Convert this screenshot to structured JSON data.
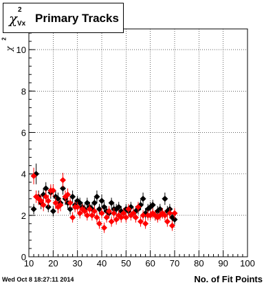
{
  "title": {
    "symbol": "χ",
    "superscript": "2",
    "subscript": "Vx",
    "text": "Primary Tracks"
  },
  "ylabel": {
    "symbol": "χ",
    "superscript": "2"
  },
  "xlabel": "No. of Fit Points",
  "timestamp": "Wed Oct  8 18:27:11 2014",
  "chart_data": {
    "type": "scatter",
    "xlim": [
      10,
      100
    ],
    "ylim": [
      0,
      11
    ],
    "xticks": [
      10,
      20,
      30,
      40,
      50,
      60,
      70,
      80,
      90,
      100
    ],
    "yticks": [
      0,
      2,
      4,
      6,
      8,
      10
    ],
    "grid": true,
    "series": [
      {
        "color": "#000000",
        "points": [
          {
            "x": 12,
            "y": 2.3,
            "err": 0.25
          },
          {
            "x": 13,
            "y": 4.0,
            "err": 0.5
          },
          {
            "x": 14,
            "y": 2.9,
            "err": 0.3
          },
          {
            "x": 15,
            "y": 2.6,
            "err": 0.3
          },
          {
            "x": 16,
            "y": 3.0,
            "err": 0.3
          },
          {
            "x": 17,
            "y": 3.3,
            "err": 0.3
          },
          {
            "x": 18,
            "y": 2.4,
            "err": 0.25
          },
          {
            "x": 19,
            "y": 3.1,
            "err": 0.3
          },
          {
            "x": 20,
            "y": 2.2,
            "err": 0.25
          },
          {
            "x": 21,
            "y": 2.9,
            "err": 0.3
          },
          {
            "x": 22,
            "y": 2.8,
            "err": 0.3
          },
          {
            "x": 23,
            "y": 2.6,
            "err": 0.25
          },
          {
            "x": 24,
            "y": 3.3,
            "err": 0.3
          },
          {
            "x": 25,
            "y": 2.8,
            "err": 0.3
          },
          {
            "x": 26,
            "y": 2.6,
            "err": 0.25
          },
          {
            "x": 27,
            "y": 2.3,
            "err": 0.25
          },
          {
            "x": 28,
            "y": 2.9,
            "err": 0.3
          },
          {
            "x": 29,
            "y": 2.5,
            "err": 0.25
          },
          {
            "x": 30,
            "y": 2.7,
            "err": 0.25
          },
          {
            "x": 31,
            "y": 2.6,
            "err": 0.25
          },
          {
            "x": 32,
            "y": 2.4,
            "err": 0.25
          },
          {
            "x": 33,
            "y": 2.3,
            "err": 0.25
          },
          {
            "x": 34,
            "y": 2.6,
            "err": 0.25
          },
          {
            "x": 35,
            "y": 2.4,
            "err": 0.25
          },
          {
            "x": 36,
            "y": 2.3,
            "err": 0.25
          },
          {
            "x": 37,
            "y": 2.6,
            "err": 0.25
          },
          {
            "x": 38,
            "y": 2.9,
            "err": 0.3
          },
          {
            "x": 39,
            "y": 2.3,
            "err": 0.25
          },
          {
            "x": 40,
            "y": 2.7,
            "err": 0.3
          },
          {
            "x": 41,
            "y": 2.4,
            "err": 0.25
          },
          {
            "x": 42,
            "y": 2.2,
            "err": 0.25
          },
          {
            "x": 43,
            "y": 2.1,
            "err": 0.25
          },
          {
            "x": 44,
            "y": 2.6,
            "err": 0.25
          },
          {
            "x": 45,
            "y": 2.3,
            "err": 0.25
          },
          {
            "x": 46,
            "y": 2.3,
            "err": 0.25
          },
          {
            "x": 47,
            "y": 2.4,
            "err": 0.25
          },
          {
            "x": 48,
            "y": 2.2,
            "err": 0.25
          },
          {
            "x": 49,
            "y": 2.1,
            "err": 0.25
          },
          {
            "x": 50,
            "y": 2.3,
            "err": 0.25
          },
          {
            "x": 51,
            "y": 2.2,
            "err": 0.25
          },
          {
            "x": 52,
            "y": 2.4,
            "err": 0.25
          },
          {
            "x": 53,
            "y": 2.1,
            "err": 0.25
          },
          {
            "x": 54,
            "y": 2.2,
            "err": 0.25
          },
          {
            "x": 55,
            "y": 2.3,
            "err": 0.25
          },
          {
            "x": 56,
            "y": 2.5,
            "err": 0.25
          },
          {
            "x": 57,
            "y": 2.8,
            "err": 0.3
          },
          {
            "x": 58,
            "y": 2.1,
            "err": 0.25
          },
          {
            "x": 59,
            "y": 2.3,
            "err": 0.25
          },
          {
            "x": 60,
            "y": 2.4,
            "err": 0.25
          },
          {
            "x": 61,
            "y": 2.5,
            "err": 0.25
          },
          {
            "x": 62,
            "y": 2.0,
            "err": 0.25
          },
          {
            "x": 63,
            "y": 2.2,
            "err": 0.25
          },
          {
            "x": 64,
            "y": 2.3,
            "err": 0.25
          },
          {
            "x": 65,
            "y": 2.1,
            "err": 0.25
          },
          {
            "x": 66,
            "y": 2.8,
            "err": 0.3
          },
          {
            "x": 67,
            "y": 2.2,
            "err": 0.25
          },
          {
            "x": 68,
            "y": 2.3,
            "err": 0.25
          },
          {
            "x": 69,
            "y": 1.9,
            "err": 0.25
          },
          {
            "x": 70,
            "y": 1.8,
            "err": 0.25
          }
        ]
      },
      {
        "color": "#ff0000",
        "points": [
          {
            "x": 12,
            "y": 3.9,
            "err": 0.4
          },
          {
            "x": 13,
            "y": 2.9,
            "err": 0.3
          },
          {
            "x": 14,
            "y": 2.8,
            "err": 0.3
          },
          {
            "x": 15,
            "y": 2.7,
            "err": 0.3
          },
          {
            "x": 16,
            "y": 2.5,
            "err": 0.3
          },
          {
            "x": 17,
            "y": 2.9,
            "err": 0.3
          },
          {
            "x": 18,
            "y": 2.7,
            "err": 0.3
          },
          {
            "x": 19,
            "y": 3.2,
            "err": 0.3
          },
          {
            "x": 20,
            "y": 3.2,
            "err": 0.3
          },
          {
            "x": 21,
            "y": 2.6,
            "err": 0.3
          },
          {
            "x": 22,
            "y": 2.4,
            "err": 0.3
          },
          {
            "x": 23,
            "y": 2.5,
            "err": 0.3
          },
          {
            "x": 24,
            "y": 3.7,
            "err": 0.35
          },
          {
            "x": 25,
            "y": 2.9,
            "err": 0.3
          },
          {
            "x": 26,
            "y": 3.0,
            "err": 0.3
          },
          {
            "x": 27,
            "y": 2.6,
            "err": 0.25
          },
          {
            "x": 28,
            "y": 1.9,
            "err": 0.25
          },
          {
            "x": 29,
            "y": 2.4,
            "err": 0.25
          },
          {
            "x": 30,
            "y": 2.4,
            "err": 0.25
          },
          {
            "x": 31,
            "y": 2.1,
            "err": 0.25
          },
          {
            "x": 32,
            "y": 2.3,
            "err": 0.25
          },
          {
            "x": 33,
            "y": 2.2,
            "err": 0.25
          },
          {
            "x": 34,
            "y": 2.0,
            "err": 0.25
          },
          {
            "x": 35,
            "y": 2.3,
            "err": 0.25
          },
          {
            "x": 36,
            "y": 2.0,
            "err": 0.25
          },
          {
            "x": 37,
            "y": 2.2,
            "err": 0.25
          },
          {
            "x": 38,
            "y": 1.9,
            "err": 0.25
          },
          {
            "x": 39,
            "y": 1.6,
            "err": 0.25
          },
          {
            "x": 40,
            "y": 2.1,
            "err": 0.25
          },
          {
            "x": 41,
            "y": 1.4,
            "err": 0.25
          },
          {
            "x": 42,
            "y": 1.9,
            "err": 0.25
          },
          {
            "x": 43,
            "y": 2.2,
            "err": 0.25
          },
          {
            "x": 44,
            "y": 1.7,
            "err": 0.25
          },
          {
            "x": 45,
            "y": 2.1,
            "err": 0.25
          },
          {
            "x": 46,
            "y": 1.8,
            "err": 0.25
          },
          {
            "x": 47,
            "y": 2.0,
            "err": 0.25
          },
          {
            "x": 48,
            "y": 1.9,
            "err": 0.25
          },
          {
            "x": 49,
            "y": 2.1,
            "err": 0.25
          },
          {
            "x": 50,
            "y": 1.9,
            "err": 0.25
          },
          {
            "x": 51,
            "y": 2.3,
            "err": 0.25
          },
          {
            "x": 52,
            "y": 2.0,
            "err": 0.25
          },
          {
            "x": 53,
            "y": 2.1,
            "err": 0.25
          },
          {
            "x": 54,
            "y": 1.9,
            "err": 0.25
          },
          {
            "x": 55,
            "y": 2.4,
            "err": 0.25
          },
          {
            "x": 56,
            "y": 1.7,
            "err": 0.25
          },
          {
            "x": 57,
            "y": 2.0,
            "err": 0.25
          },
          {
            "x": 58,
            "y": 1.6,
            "err": 0.25
          },
          {
            "x": 59,
            "y": 2.0,
            "err": 0.25
          },
          {
            "x": 60,
            "y": 2.0,
            "err": 0.25
          },
          {
            "x": 61,
            "y": 2.1,
            "err": 0.25
          },
          {
            "x": 62,
            "y": 2.0,
            "err": 0.25
          },
          {
            "x": 63,
            "y": 1.9,
            "err": 0.25
          },
          {
            "x": 64,
            "y": 2.0,
            "err": 0.25
          },
          {
            "x": 65,
            "y": 2.1,
            "err": 0.25
          },
          {
            "x": 66,
            "y": 2.0,
            "err": 0.25
          },
          {
            "x": 67,
            "y": 1.7,
            "err": 0.25
          },
          {
            "x": 68,
            "y": 2.1,
            "err": 0.25
          },
          {
            "x": 69,
            "y": 1.5,
            "err": 0.25
          },
          {
            "x": 70,
            "y": 2.1,
            "err": 0.25
          }
        ]
      }
    ]
  }
}
